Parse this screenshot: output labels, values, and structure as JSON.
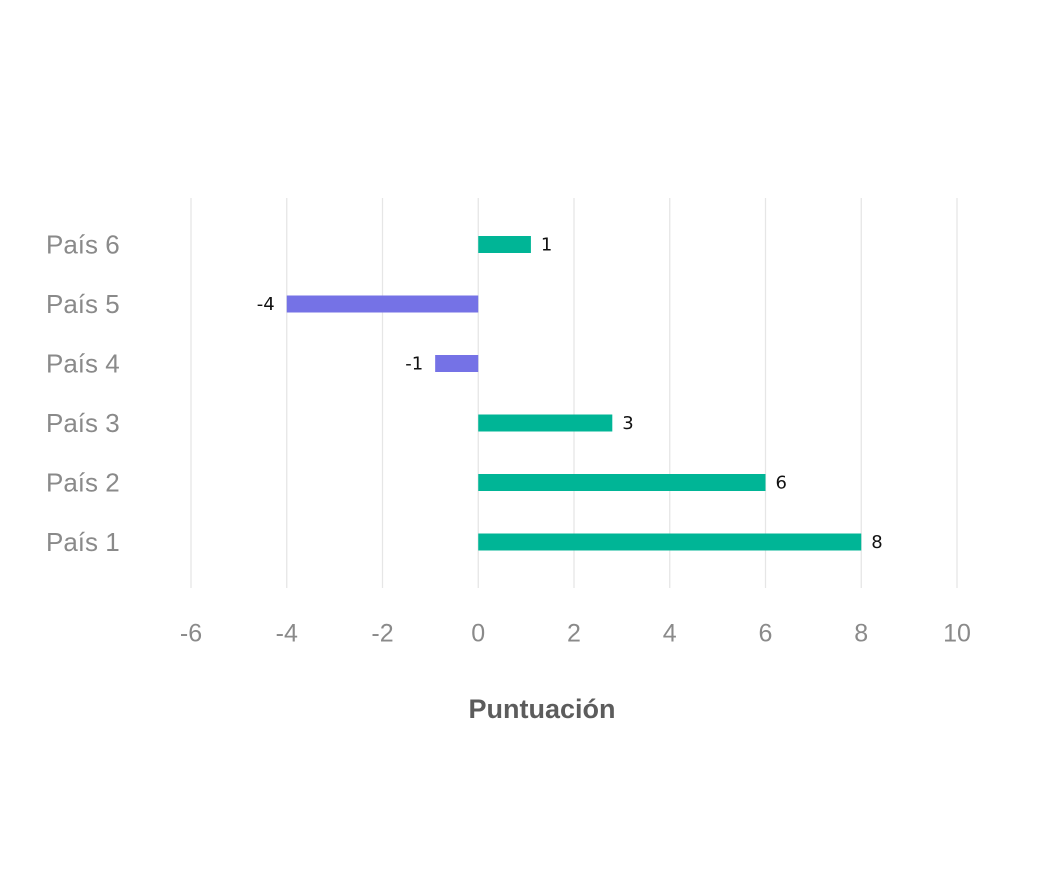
{
  "chart_data": {
    "type": "bar",
    "orientation": "horizontal",
    "categories": [
      "País 1",
      "País 2",
      "País 3",
      "País 4",
      "País 5",
      "País 6"
    ],
    "values": [
      8,
      6,
      2.8,
      -0.9,
      -4,
      1.1
    ],
    "data_labels": [
      "8",
      "6",
      "3",
      "-1",
      "-4",
      "1"
    ],
    "xlabel": "Puntuación",
    "ylabel": "",
    "xlim": [
      -6,
      10
    ],
    "xticks": [
      -6,
      -4,
      -2,
      0,
      2,
      4,
      6,
      8,
      10
    ],
    "xtick_labels": [
      "-6",
      "-4",
      "-2",
      "0",
      "2",
      "4",
      "6",
      "8",
      "10"
    ],
    "grid": "vertical",
    "legend": "none",
    "colors": {
      "positive": "#00b596",
      "negative": "#7572e6",
      "grid": "#e6e6e6",
      "axis_text": "#8a8a8a",
      "title_text": "#5c5c5c"
    }
  }
}
